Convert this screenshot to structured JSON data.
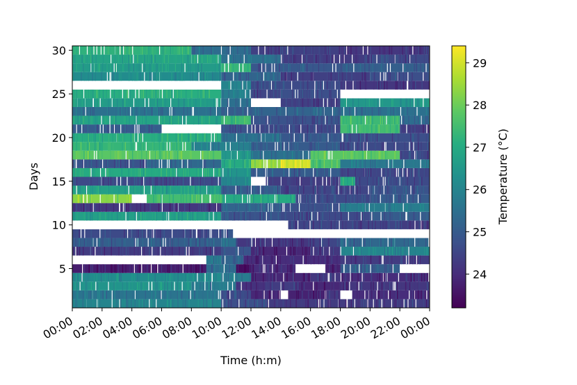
{
  "chart_data": {
    "type": "heatmap",
    "xlabel": "Time (h:m)",
    "ylabel": "Days",
    "colorbar_label": "Temperature ($^\\circ$C)",
    "colorbar_label_display": "Temperature (°C)",
    "colormap": "viridis",
    "x_tick_labels": [
      "00:00",
      "02:00",
      "04:00",
      "06:00",
      "08:00",
      "10:00",
      "12:00",
      "14:00",
      "16:00",
      "18:00",
      "20:00",
      "22:00",
      "00:00"
    ],
    "x_range_hours": [
      0,
      24
    ],
    "y_ticks": [
      5,
      10,
      15,
      20,
      25,
      30
    ],
    "y_range": [
      0.5,
      30.5
    ],
    "colorbar_ticks": [
      24,
      25,
      26,
      27,
      28,
      29
    ],
    "color_range": [
      23.2,
      29.4
    ],
    "missing_color": "#ffffff",
    "days": [
      {
        "day": 1,
        "segments": [
          [
            0,
            10,
            26.0
          ],
          [
            10,
            13,
            24.7
          ],
          [
            13,
            24,
            24.3
          ]
        ]
      },
      {
        "day": 2,
        "segments": [
          [
            0,
            10,
            25.6
          ],
          [
            10,
            12,
            24.6
          ],
          [
            12,
            14,
            23.9
          ],
          [
            14,
            14.5,
            null
          ],
          [
            14.5,
            17,
            23.8
          ],
          [
            17,
            18,
            24.2
          ],
          [
            18,
            18.8,
            null
          ],
          [
            18.8,
            24,
            24.0
          ]
        ]
      },
      {
        "day": 3,
        "segments": [
          [
            0,
            8,
            26.4
          ],
          [
            8,
            11,
            25.8
          ],
          [
            11,
            13,
            24.1
          ],
          [
            13,
            15,
            24.3
          ],
          [
            15,
            18,
            23.9
          ],
          [
            18,
            24,
            24.2
          ]
        ]
      },
      {
        "day": 4,
        "segments": [
          [
            0,
            10,
            26.2
          ],
          [
            10,
            12,
            25.8
          ],
          [
            12,
            16,
            23.9
          ],
          [
            16,
            18,
            24.2
          ],
          [
            18,
            24,
            24.0
          ]
        ]
      },
      {
        "day": 5,
        "segments": [
          [
            0,
            9,
            23.7
          ],
          [
            9,
            11,
            25.4
          ],
          [
            11,
            12,
            23.4
          ],
          [
            12,
            15,
            24.0
          ],
          [
            15,
            17,
            null
          ],
          [
            17,
            18,
            23.8
          ],
          [
            18,
            22,
            25.1
          ],
          [
            22,
            24,
            null
          ]
        ]
      },
      {
        "day": 6,
        "segments": [
          [
            0,
            9,
            null
          ],
          [
            9,
            10,
            25.7
          ],
          [
            10,
            11.5,
            25.2
          ],
          [
            11.5,
            18,
            24.0
          ],
          [
            18,
            24,
            24.3
          ]
        ]
      },
      {
        "day": 7,
        "segments": [
          [
            0,
            10,
            24.3
          ],
          [
            10,
            12,
            24.8
          ],
          [
            12,
            16,
            23.9
          ],
          [
            16,
            18,
            24.2
          ],
          [
            18,
            24,
            26.0
          ]
        ]
      },
      {
        "day": 8,
        "segments": [
          [
            0,
            10,
            25.1
          ],
          [
            10,
            11,
            25.5
          ],
          [
            11,
            16,
            24.2
          ],
          [
            16,
            18,
            24.5
          ],
          [
            18,
            24,
            25.3
          ]
        ]
      },
      {
        "day": 9,
        "segments": [
          [
            0,
            10,
            24.6
          ],
          [
            10,
            10.8,
            24.9
          ],
          [
            10.8,
            24,
            null
          ]
        ]
      },
      {
        "day": 10,
        "segments": [
          [
            0,
            10,
            null
          ],
          [
            10,
            14.5,
            null
          ],
          [
            14.5,
            22,
            24.5
          ],
          [
            22,
            24,
            24.3
          ]
        ]
      },
      {
        "day": 11,
        "segments": [
          [
            0,
            10,
            26.7
          ],
          [
            10,
            14,
            24.8
          ],
          [
            14,
            20,
            24.6
          ],
          [
            20,
            24,
            25.0
          ]
        ]
      },
      {
        "day": 12,
        "segments": [
          [
            0,
            10,
            24.2
          ],
          [
            10,
            14,
            25.2
          ],
          [
            14,
            18,
            24.7
          ],
          [
            18,
            24,
            25.8
          ]
        ]
      },
      {
        "day": 13,
        "segments": [
          [
            0,
            4,
            28.3
          ],
          [
            4,
            5,
            null
          ],
          [
            5,
            10,
            27.5
          ],
          [
            10,
            15,
            27.0
          ],
          [
            15,
            20,
            24.6
          ],
          [
            20,
            24,
            25.0
          ]
        ]
      },
      {
        "day": 14,
        "segments": [
          [
            0,
            10,
            26.7
          ],
          [
            10,
            14,
            25.0
          ],
          [
            14,
            20,
            24.5
          ],
          [
            20,
            24,
            24.8
          ]
        ]
      },
      {
        "day": 15,
        "segments": [
          [
            0,
            10,
            24.6
          ],
          [
            10,
            12,
            26.0
          ],
          [
            12,
            13,
            null
          ],
          [
            13,
            18,
            24.3
          ],
          [
            18,
            19,
            27.0
          ],
          [
            19,
            24,
            24.6
          ]
        ]
      },
      {
        "day": 16,
        "segments": [
          [
            0,
            10,
            27.0
          ],
          [
            10,
            12,
            26.4
          ],
          [
            12,
            18,
            25.0
          ],
          [
            18,
            24,
            24.5
          ]
        ]
      },
      {
        "day": 17,
        "segments": [
          [
            0,
            5,
            24.8
          ],
          [
            5,
            10,
            25.3
          ],
          [
            10,
            12,
            27.0
          ],
          [
            12,
            14,
            28.4
          ],
          [
            14,
            16,
            29.0
          ],
          [
            16,
            18,
            27.6
          ],
          [
            18,
            24,
            25.7
          ]
        ]
      },
      {
        "day": 18,
        "segments": [
          [
            0,
            10,
            27.8
          ],
          [
            10,
            12,
            26.5
          ],
          [
            12,
            16,
            25.5
          ],
          [
            16,
            22,
            27.8
          ],
          [
            22,
            24,
            24.5
          ]
        ]
      },
      {
        "day": 19,
        "segments": [
          [
            0,
            8,
            27.3
          ],
          [
            8,
            12,
            25.9
          ],
          [
            12,
            18,
            25.0
          ],
          [
            18,
            24,
            24.6
          ]
        ]
      },
      {
        "day": 20,
        "segments": [
          [
            0,
            10,
            27.1
          ],
          [
            10,
            14,
            25.5
          ],
          [
            14,
            18,
            24.9
          ],
          [
            18,
            24,
            24.7
          ]
        ]
      },
      {
        "day": 21,
        "segments": [
          [
            0,
            6,
            25.0
          ],
          [
            6,
            10,
            null
          ],
          [
            10,
            12,
            24.8
          ],
          [
            12,
            18,
            24.5
          ],
          [
            18,
            22,
            27.5
          ],
          [
            22,
            24,
            24.3
          ]
        ]
      },
      {
        "day": 22,
        "segments": [
          [
            0,
            10,
            26.8
          ],
          [
            10,
            12,
            27.4
          ],
          [
            12,
            18,
            24.8
          ],
          [
            18,
            22,
            27.4
          ],
          [
            22,
            24,
            25.4
          ]
        ]
      },
      {
        "day": 23,
        "segments": [
          [
            0,
            10,
            25.5
          ],
          [
            10,
            12,
            25.0
          ],
          [
            12,
            18,
            25.2
          ],
          [
            18,
            24,
            25.5
          ]
        ]
      },
      {
        "day": 24,
        "segments": [
          [
            0,
            10,
            26.6
          ],
          [
            10,
            12,
            25.5
          ],
          [
            12,
            14,
            null
          ],
          [
            14,
            18,
            24.4
          ],
          [
            18,
            24,
            26.5
          ]
        ]
      },
      {
        "day": 25,
        "segments": [
          [
            0,
            10,
            27.1
          ],
          [
            10,
            12,
            25.8
          ],
          [
            12,
            14,
            24.5
          ],
          [
            14,
            18,
            24.7
          ],
          [
            18,
            24,
            null
          ]
        ]
      },
      {
        "day": 26,
        "segments": [
          [
            0,
            10,
            null
          ],
          [
            10,
            12,
            26.0
          ],
          [
            12,
            18,
            24.6
          ],
          [
            18,
            24,
            24.2
          ]
        ]
      },
      {
        "day": 27,
        "segments": [
          [
            0,
            10,
            26.2
          ],
          [
            10,
            14,
            25.2
          ],
          [
            14,
            20,
            24.4
          ],
          [
            20,
            24,
            24.7
          ]
        ]
      },
      {
        "day": 28,
        "segments": [
          [
            0,
            10,
            26.6
          ],
          [
            10,
            12,
            27.3
          ],
          [
            12,
            18,
            24.9
          ],
          [
            18,
            24,
            25.1
          ]
        ]
      },
      {
        "day": 29,
        "segments": [
          [
            0,
            10,
            26.8
          ],
          [
            10,
            14,
            25.5
          ],
          [
            14,
            20,
            24.3
          ],
          [
            20,
            24,
            24.6
          ]
        ]
      },
      {
        "day": 30,
        "segments": [
          [
            0,
            8,
            27.2
          ],
          [
            8,
            12,
            25.4
          ],
          [
            12,
            18,
            24.4
          ],
          [
            18,
            24,
            24.2
          ]
        ]
      }
    ]
  }
}
